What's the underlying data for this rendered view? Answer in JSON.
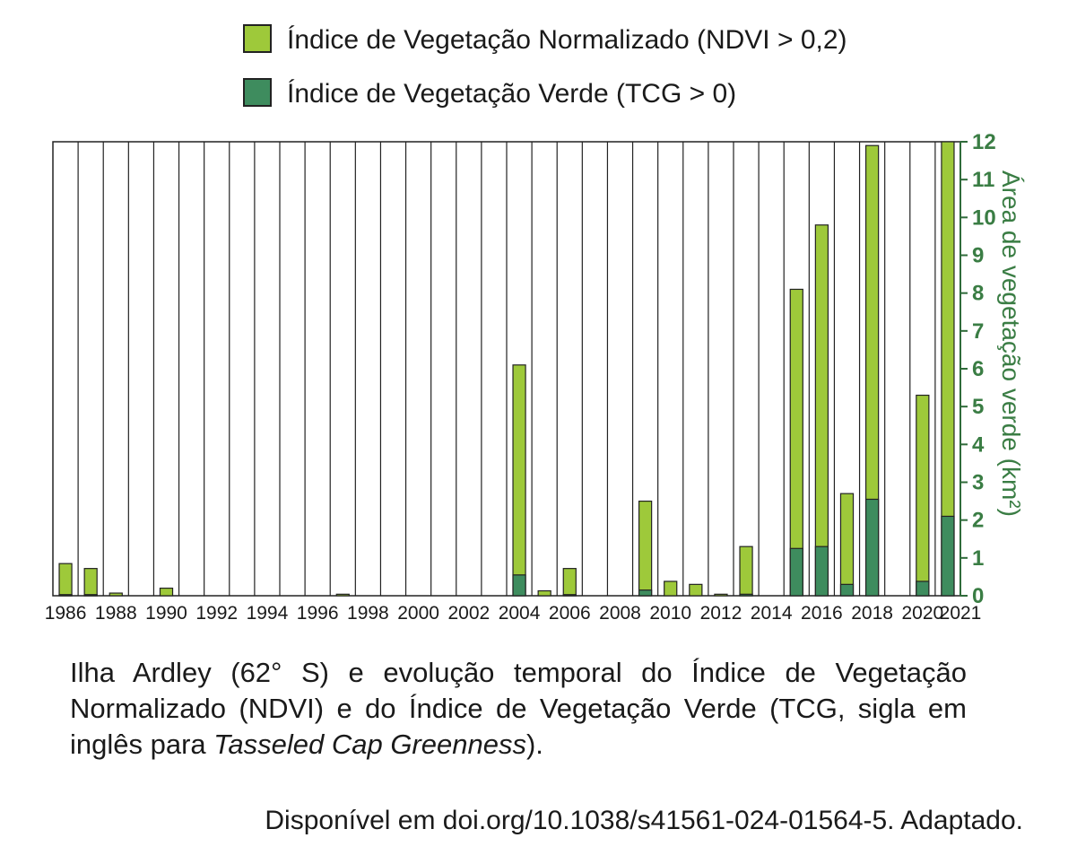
{
  "legend": {
    "ndvi_label": "Índice de Vegetação Normalizado (NDVI > 0,2)",
    "tcg_label": "Índice de Vegetação Verde (TCG > 0)"
  },
  "caption": {
    "part1": "Ilha Ardley (62° S) e evolução temporal do Índice de Vegetação Normalizado (NDVI) e do Índice de Vegetação Verde (TCG, sigla em inglês para ",
    "italic": "Tasseled Cap Greenness",
    "part2": ")."
  },
  "source": "Disponível em doi.org/10.1038/s41561-024-01564-5. Adaptado.",
  "colors": {
    "ndvi": "#9ec93a",
    "tcg": "#3e8c5e",
    "axis_text": "#3a7d44"
  },
  "chart_data": {
    "type": "bar",
    "title": "",
    "xlabel": "",
    "ylabel": "Área de vegetação verde (km²)",
    "ylim": [
      0,
      12
    ],
    "yticks": [
      "0",
      "1",
      "2",
      "3",
      "4",
      "5",
      "6",
      "7",
      "8",
      "9",
      "10",
      "11",
      "12"
    ],
    "years": [
      1986,
      1987,
      1988,
      1989,
      1990,
      1991,
      1992,
      1993,
      1994,
      1995,
      1996,
      1997,
      1998,
      1999,
      2000,
      2001,
      2002,
      2003,
      2004,
      2005,
      2006,
      2007,
      2008,
      2009,
      2010,
      2011,
      2012,
      2013,
      2014,
      2015,
      2016,
      2017,
      2018,
      2019,
      2020,
      2021
    ],
    "xtick_labels": [
      "1986",
      "1988",
      "1990",
      "1992",
      "1994",
      "1996",
      "1998",
      "2000",
      "2002",
      "2004",
      "2006",
      "2008",
      "2010",
      "2012",
      "2014",
      "2016",
      "2018",
      "2020",
      "2021"
    ],
    "series": [
      {
        "name": "Índice de Vegetação Normalizado (NDVI > 0,2)",
        "values": [
          0.85,
          0.72,
          0.07,
          0,
          0.2,
          0,
          0,
          0,
          0,
          0,
          0,
          0.04,
          0,
          0,
          0,
          0,
          0,
          0,
          6.1,
          0.13,
          0.72,
          0,
          0,
          2.5,
          0.38,
          0.3,
          0.04,
          1.3,
          0,
          8.1,
          9.8,
          2.7,
          11.9,
          0,
          5.3,
          12.0
        ]
      },
      {
        "name": "Índice de Vegetação Verde (TCG > 0)",
        "values": [
          0.03,
          0.03,
          0,
          0,
          0,
          0,
          0,
          0,
          0,
          0,
          0,
          0,
          0,
          0,
          0,
          0,
          0,
          0,
          0.55,
          0,
          0.03,
          0,
          0,
          0.15,
          0,
          0,
          0,
          0.04,
          0,
          1.25,
          1.3,
          0.3,
          2.55,
          0,
          0.38,
          2.1
        ]
      }
    ]
  }
}
